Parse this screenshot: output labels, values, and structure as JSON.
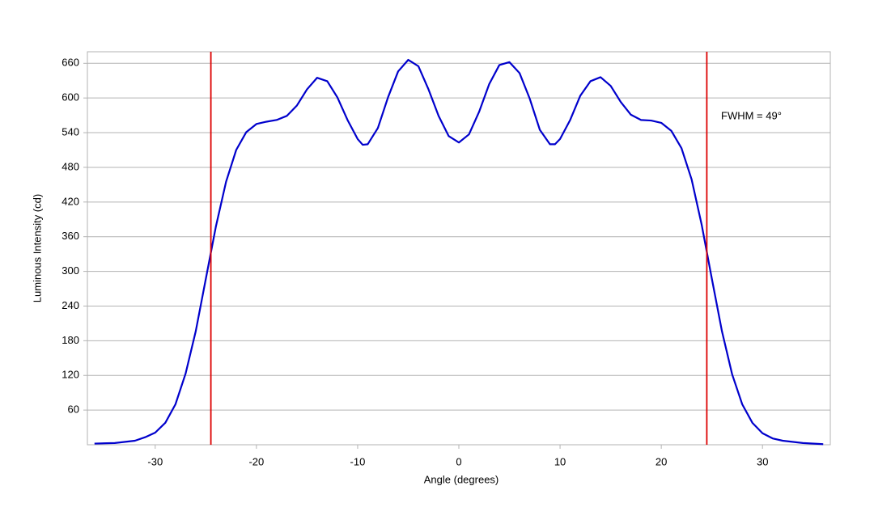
{
  "chart_data": {
    "type": "line",
    "x_label": "Angle (degrees)",
    "y_label": "Luminous Intensity (cd)",
    "annotation": "FWHM = 49°",
    "x": [
      -36,
      -34,
      -32,
      -31,
      -30,
      -29,
      -28,
      -27,
      -26,
      -25,
      -24,
      -23,
      -22,
      -21,
      -20,
      -19,
      -18,
      -17,
      -16,
      -15,
      -14,
      -13,
      -12,
      -11,
      -10,
      -9.5,
      -9,
      -8,
      -7,
      -6,
      -5,
      -4,
      -3,
      -2,
      -1,
      0,
      1,
      2,
      3,
      4,
      5,
      6,
      7,
      8,
      9,
      9.5,
      10,
      11,
      12,
      13,
      14,
      15,
      16,
      17,
      18,
      19,
      20,
      21,
      22,
      23,
      24,
      25,
      26,
      27,
      28,
      29,
      30,
      31,
      32,
      34,
      36
    ],
    "values": [
      2,
      3,
      7,
      13,
      21,
      38,
      70,
      123,
      196,
      287,
      378,
      455,
      510,
      541,
      555,
      559,
      562,
      569,
      587,
      615,
      635,
      629,
      601,
      562,
      529,
      519,
      520,
      548,
      601,
      646,
      666,
      655,
      615,
      569,
      534,
      523,
      537,
      576,
      624,
      657,
      662,
      643,
      599,
      545,
      520,
      520,
      529,
      562,
      604,
      629,
      636,
      621,
      593,
      571,
      562,
      561,
      557,
      543,
      513,
      459,
      380,
      287,
      196,
      122,
      70,
      38,
      20,
      11,
      7,
      3,
      1
    ],
    "color": "#0000cc",
    "vlines": [
      -24.5,
      24.5
    ],
    "vline_color": "#dd0000",
    "xlim": [
      -36.7,
      36.7
    ],
    "ylim": [
      0,
      680
    ],
    "xticks": [
      -30,
      -20,
      -10,
      0,
      10,
      20,
      30
    ],
    "yticks": [
      60,
      120,
      180,
      240,
      300,
      360,
      420,
      480,
      540,
      600,
      660
    ],
    "grid": true
  }
}
